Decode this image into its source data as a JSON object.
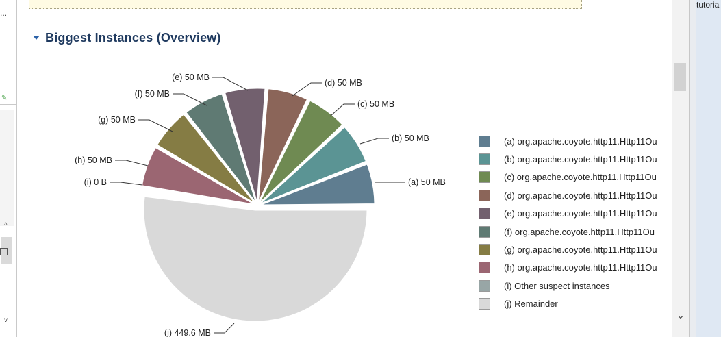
{
  "left_pane": {
    "truncated_text": "..."
  },
  "section": {
    "title": "Biggest Instances (Overview)"
  },
  "right_panel": {
    "text": "tutoria"
  },
  "chart_data": {
    "type": "pie",
    "slices": [
      {
        "key": "a",
        "label": "(a)  50 MB",
        "value_mb": 50,
        "color": "#5f7d90",
        "legend": "(a)  org.apache.coyote.http11.Http11Ou"
      },
      {
        "key": "b",
        "label": "(b)  50 MB",
        "value_mb": 50,
        "color": "#5b9494",
        "legend": "(b)  org.apache.coyote.http11.Http11Ou"
      },
      {
        "key": "c",
        "label": "(c)  50 MB",
        "value_mb": 50,
        "color": "#6f8a52",
        "legend": "(c)  org.apache.coyote.http11.Http11Ou"
      },
      {
        "key": "d",
        "label": "(d)  50 MB",
        "value_mb": 50,
        "color": "#8b6559",
        "legend": "(d)  org.apache.coyote.http11.Http11Ou"
      },
      {
        "key": "e",
        "label": "(e)  50 MB",
        "value_mb": 50,
        "color": "#72606e",
        "legend": "(e)  org.apache.coyote.http11.Http11Ou"
      },
      {
        "key": "f",
        "label": "(f)  50 MB",
        "value_mb": 50,
        "color": "#5f7a73",
        "legend": "(f)  org.apache.coyote.http11.Http11Ou"
      },
      {
        "key": "g",
        "label": "(g)  50 MB",
        "value_mb": 50,
        "color": "#857c44",
        "legend": "(g)  org.apache.coyote.http11.Http11Ou"
      },
      {
        "key": "h",
        "label": "(h)  50 MB",
        "value_mb": 50,
        "color": "#9b6672",
        "legend": "(h)  org.apache.coyote.http11.Http11Ou"
      },
      {
        "key": "i",
        "label": "(i)  0 B",
        "value_mb": 0,
        "color": "#98a6a6",
        "legend": "(i)  Other suspect instances"
      },
      {
        "key": "j",
        "label": "(j)  449.6 MB",
        "value_mb": 449.6,
        "color": "#d9d9d9",
        "legend": "(j)  Remainder"
      }
    ]
  }
}
